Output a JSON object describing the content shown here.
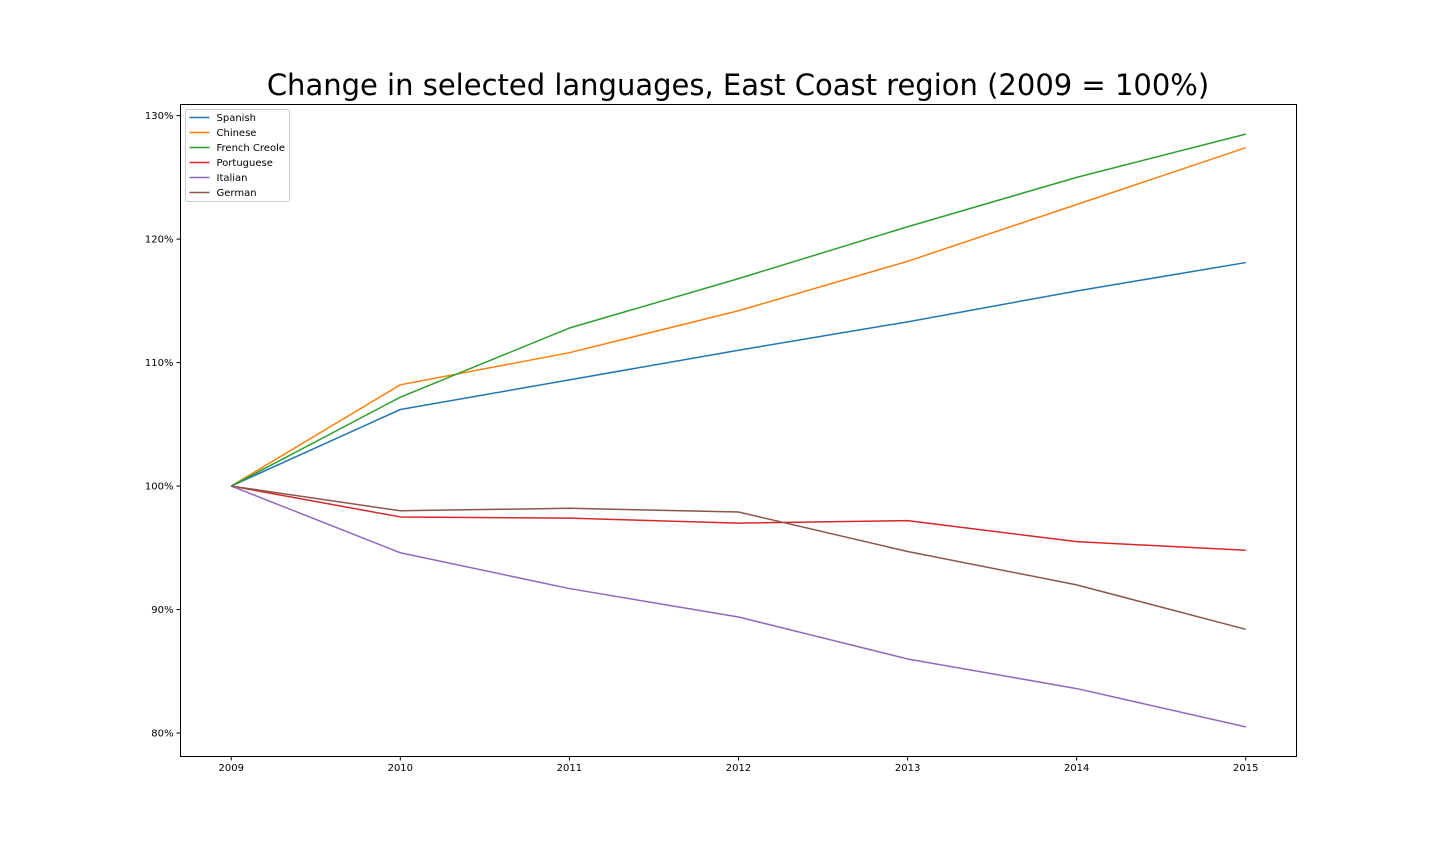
{
  "chart_data": {
    "type": "line",
    "title": "Change in selected languages, East Coast region (2009 = 100%)",
    "xlabel": "",
    "ylabel": "",
    "x": [
      2009,
      2010,
      2011,
      2012,
      2013,
      2014,
      2015
    ],
    "x_tick_labels": [
      "2009",
      "2010",
      "2011",
      "2012",
      "2013",
      "2014",
      "2015"
    ],
    "y_ticks": [
      80,
      90,
      100,
      110,
      120,
      130
    ],
    "y_tick_labels": [
      "80%",
      "90%",
      "100%",
      "110%",
      "120%",
      "130%"
    ],
    "xlim": [
      2008.7,
      2015.3
    ],
    "ylim": [
      78.1,
      130.9
    ],
    "grid": false,
    "legend_position": "top-left",
    "series": [
      {
        "name": "Spanish",
        "color": "#1f77b4",
        "values": [
          100,
          106.2,
          108.6,
          111.0,
          113.3,
          115.8,
          118.1
        ]
      },
      {
        "name": "Chinese",
        "color": "#ff7f0e",
        "values": [
          100,
          108.2,
          110.8,
          114.2,
          118.2,
          122.8,
          127.4
        ]
      },
      {
        "name": "French Creole",
        "color": "#2ca02c",
        "values": [
          100,
          107.2,
          112.8,
          116.8,
          121.0,
          125.0,
          128.5
        ]
      },
      {
        "name": "Portuguese",
        "color": "#d62728",
        "values": [
          100,
          97.5,
          97.4,
          97.0,
          97.2,
          95.5,
          94.8
        ]
      },
      {
        "name": "Italian",
        "color": "#9467bd",
        "values": [
          100,
          94.6,
          91.7,
          89.4,
          86.0,
          83.6,
          80.5
        ]
      },
      {
        "name": "German",
        "color": "#8c564b",
        "values": [
          100,
          98.0,
          98.2,
          97.9,
          94.7,
          92.0,
          88.4
        ]
      }
    ]
  }
}
